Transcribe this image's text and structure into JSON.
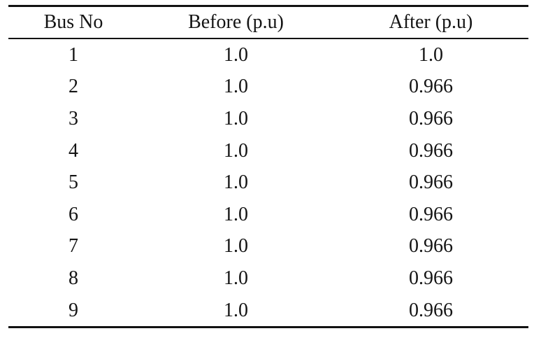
{
  "colors": {
    "background": "#ffffff",
    "text": "#141414",
    "rule": "#121212"
  },
  "table": {
    "columns": [
      "Bus No",
      "Before (p.u)",
      "After (p.u)"
    ],
    "rows": [
      {
        "bus": "1",
        "before": "1.0",
        "after": "1.0"
      },
      {
        "bus": "2",
        "before": "1.0",
        "after": "0.966"
      },
      {
        "bus": "3",
        "before": "1.0",
        "after": "0.966"
      },
      {
        "bus": "4",
        "before": "1.0",
        "after": "0.966"
      },
      {
        "bus": "5",
        "before": "1.0",
        "after": "0.966"
      },
      {
        "bus": "6",
        "before": "1.0",
        "after": "0.966"
      },
      {
        "bus": "7",
        "before": "1.0",
        "after": "0.966"
      },
      {
        "bus": "8",
        "before": "1.0",
        "after": "0.966"
      },
      {
        "bus": "9",
        "before": "1.0",
        "after": "0.966"
      }
    ]
  }
}
